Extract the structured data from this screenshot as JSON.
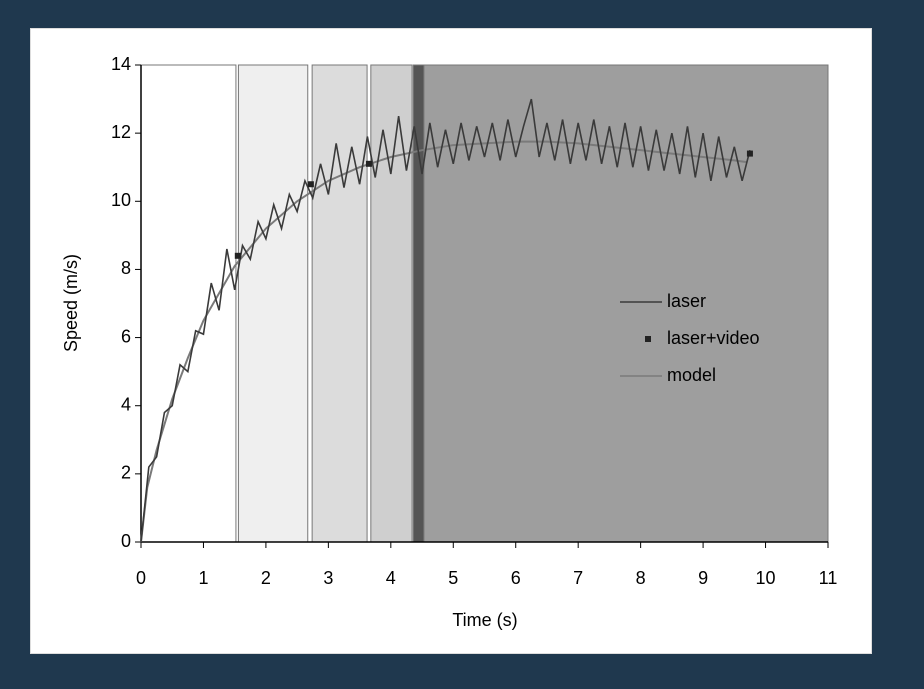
{
  "chart_data": {
    "type": "line",
    "x_label": "Time (s)",
    "y_label": "Speed (m/s)",
    "xlim": [
      0,
      11
    ],
    "xticks": [
      0,
      1,
      2,
      3,
      4,
      5,
      6,
      7,
      8,
      9,
      10,
      11
    ],
    "ylim": [
      0,
      14
    ],
    "yticks": [
      0,
      2,
      4,
      6,
      8,
      10,
      12,
      14
    ],
    "legend": "right",
    "phases": [
      {
        "x": [
          0,
          1.52
        ],
        "color": "#ffffff"
      },
      {
        "x": [
          1.56,
          2.67
        ],
        "color": "#efefef"
      },
      {
        "x": [
          2.74,
          3.62
        ],
        "color": "#dcdcdc"
      },
      {
        "x": [
          3.68,
          4.34
        ],
        "color": "#cfcfcf"
      },
      {
        "x": [
          4.36,
          4.53
        ],
        "color": "#555555"
      },
      {
        "x": [
          4.53,
          11
        ],
        "color": "#9e9e9e"
      }
    ],
    "series": [
      {
        "name": "laser",
        "kind": "line",
        "color": "#3a3a3a",
        "x": [
          0,
          0.125,
          0.25,
          0.375,
          0.5,
          0.625,
          0.75,
          0.875,
          1,
          1.125,
          1.25,
          1.375,
          1.5,
          1.625,
          1.75,
          1.875,
          2,
          2.125,
          2.25,
          2.375,
          2.5,
          2.625,
          2.75,
          2.875,
          3,
          3.125,
          3.25,
          3.375,
          3.5,
          3.625,
          3.75,
          3.875,
          4,
          4.125,
          4.25,
          4.375,
          4.5,
          4.625,
          4.75,
          4.875,
          5,
          5.125,
          5.25,
          5.375,
          5.5,
          5.625,
          5.75,
          5.875,
          6,
          6.125,
          6.25,
          6.375,
          6.5,
          6.625,
          6.75,
          6.875,
          7,
          7.125,
          7.25,
          7.375,
          7.5,
          7.625,
          7.75,
          7.875,
          8,
          8.125,
          8.25,
          8.375,
          8.5,
          8.625,
          8.75,
          8.875,
          9,
          9.125,
          9.25,
          9.375,
          9.5,
          9.625,
          9.75
        ],
        "values": [
          0,
          2.2,
          2.5,
          3.8,
          4.0,
          5.2,
          5.0,
          6.2,
          6.1,
          7.6,
          6.8,
          8.6,
          7.4,
          8.7,
          8.3,
          9.4,
          8.9,
          9.9,
          9.2,
          10.2,
          9.7,
          10.6,
          10.1,
          11.1,
          10.2,
          11.7,
          10.4,
          11.6,
          10.5,
          11.9,
          10.7,
          12.1,
          10.8,
          12.5,
          10.9,
          12.2,
          10.8,
          12.3,
          11.0,
          12.1,
          11.1,
          12.3,
          11.2,
          12.2,
          11.3,
          12.3,
          11.2,
          12.4,
          11.3,
          12.2,
          13.0,
          11.3,
          12.3,
          11.2,
          12.4,
          11.1,
          12.3,
          11.2,
          12.4,
          11.1,
          12.2,
          11.0,
          12.3,
          11.0,
          12.2,
          10.9,
          12.1,
          10.9,
          12.0,
          10.8,
          12.2,
          10.7,
          12.0,
          10.6,
          11.9,
          10.7,
          11.6,
          10.6,
          11.5
        ]
      },
      {
        "name": "laser+video",
        "kind": "points",
        "color": "#222222",
        "x": [
          1.55,
          2.72,
          3.65,
          9.75
        ],
        "values": [
          8.4,
          10.5,
          11.1,
          11.4
        ]
      },
      {
        "name": "model",
        "kind": "line",
        "color": "#7a7a7a",
        "x": [
          0,
          0.1,
          0.25,
          0.5,
          0.75,
          1,
          1.5,
          2,
          2.5,
          3,
          3.5,
          4,
          4.5,
          5,
          5.5,
          6,
          6.5,
          7,
          7.5,
          8,
          8.5,
          9,
          9.5,
          9.7
        ],
        "values": [
          0,
          1.6,
          2.7,
          4.2,
          5.4,
          6.5,
          8.1,
          9.2,
          10.0,
          10.6,
          11.0,
          11.3,
          11.5,
          11.65,
          11.7,
          11.75,
          11.75,
          11.7,
          11.6,
          11.5,
          11.4,
          11.3,
          11.2,
          11.15
        ]
      }
    ]
  }
}
